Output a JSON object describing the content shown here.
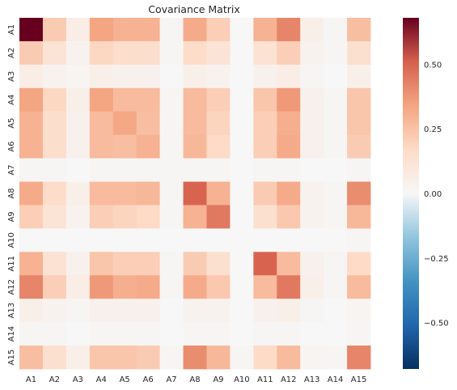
{
  "chart_data": {
    "type": "heatmap",
    "title": "Covariance Matrix",
    "xlabel": "",
    "ylabel": "",
    "x_labels": [
      "A1",
      "A2",
      "A3",
      "A4",
      "A5",
      "A6",
      "A7",
      "A8",
      "A9",
      "A10",
      "A11",
      "A12",
      "A13",
      "A14",
      "A15"
    ],
    "y_labels": [
      "A1",
      "A2",
      "A3",
      "A4",
      "A5",
      "A6",
      "A7",
      "A8",
      "A9",
      "A10",
      "A11",
      "A12",
      "A13",
      "A14",
      "A15"
    ],
    "values": [
      [
        0.68,
        0.22,
        0.06,
        0.34,
        0.3,
        0.3,
        0.01,
        0.32,
        0.21,
        0.0,
        0.3,
        0.42,
        0.05,
        0.01,
        0.26
      ],
      [
        0.22,
        0.12,
        0.03,
        0.18,
        0.15,
        0.15,
        0.01,
        0.16,
        0.12,
        0.0,
        0.13,
        0.21,
        0.03,
        0.01,
        0.14
      ],
      [
        0.06,
        0.03,
        0.02,
        0.05,
        0.04,
        0.04,
        0.0,
        0.05,
        0.03,
        0.0,
        0.04,
        0.06,
        0.01,
        0.0,
        0.05
      ],
      [
        0.34,
        0.18,
        0.05,
        0.34,
        0.27,
        0.27,
        0.01,
        0.27,
        0.21,
        0.0,
        0.24,
        0.37,
        0.04,
        0.01,
        0.24
      ],
      [
        0.3,
        0.15,
        0.04,
        0.27,
        0.33,
        0.26,
        0.01,
        0.27,
        0.19,
        0.0,
        0.21,
        0.31,
        0.04,
        0.01,
        0.24
      ],
      [
        0.3,
        0.15,
        0.04,
        0.27,
        0.26,
        0.3,
        0.01,
        0.28,
        0.17,
        0.0,
        0.21,
        0.32,
        0.04,
        0.01,
        0.22
      ],
      [
        0.01,
        0.01,
        0.0,
        0.01,
        0.01,
        0.01,
        0.01,
        0.01,
        0.01,
        0.0,
        0.01,
        0.01,
        0.0,
        0.0,
        0.01
      ],
      [
        0.32,
        0.16,
        0.05,
        0.27,
        0.27,
        0.28,
        0.01,
        0.5,
        0.3,
        0.0,
        0.22,
        0.32,
        0.03,
        0.01,
        0.4
      ],
      [
        0.21,
        0.12,
        0.03,
        0.21,
        0.19,
        0.17,
        0.01,
        0.3,
        0.45,
        0.0,
        0.14,
        0.23,
        0.03,
        0.01,
        0.28
      ],
      [
        0.0,
        0.0,
        0.0,
        0.0,
        0.0,
        0.0,
        0.0,
        0.0,
        0.0,
        0.0,
        0.0,
        0.0,
        0.0,
        0.0,
        0.01
      ],
      [
        0.3,
        0.13,
        0.04,
        0.24,
        0.21,
        0.21,
        0.01,
        0.22,
        0.14,
        0.0,
        0.5,
        0.27,
        0.04,
        0.01,
        0.17
      ],
      [
        0.42,
        0.21,
        0.06,
        0.37,
        0.31,
        0.32,
        0.01,
        0.32,
        0.23,
        0.0,
        0.27,
        0.45,
        0.05,
        0.01,
        0.27
      ],
      [
        0.05,
        0.03,
        0.01,
        0.04,
        0.04,
        0.04,
        0.0,
        0.03,
        0.03,
        0.0,
        0.04,
        0.05,
        0.01,
        0.0,
        0.02
      ],
      [
        0.01,
        0.01,
        0.0,
        0.01,
        0.01,
        0.01,
        0.0,
        0.01,
        0.01,
        0.0,
        0.01,
        0.01,
        0.0,
        0.0,
        0.01
      ],
      [
        0.26,
        0.14,
        0.05,
        0.24,
        0.24,
        0.22,
        0.01,
        0.4,
        0.28,
        0.01,
        0.17,
        0.27,
        0.02,
        0.01,
        0.42
      ]
    ],
    "vmin": -0.68,
    "vmax": 0.68,
    "colormap": "RdBu_r",
    "colors": {
      "low": "#053061",
      "mid": "#f7f7f7",
      "high": "#67001f"
    },
    "colorbar_ticks": [
      -0.5,
      -0.25,
      0.0,
      0.25,
      0.5
    ],
    "colorbar_tick_labels": [
      "−0.50",
      "−0.25",
      "0.00",
      "0.25",
      "0.50"
    ]
  }
}
